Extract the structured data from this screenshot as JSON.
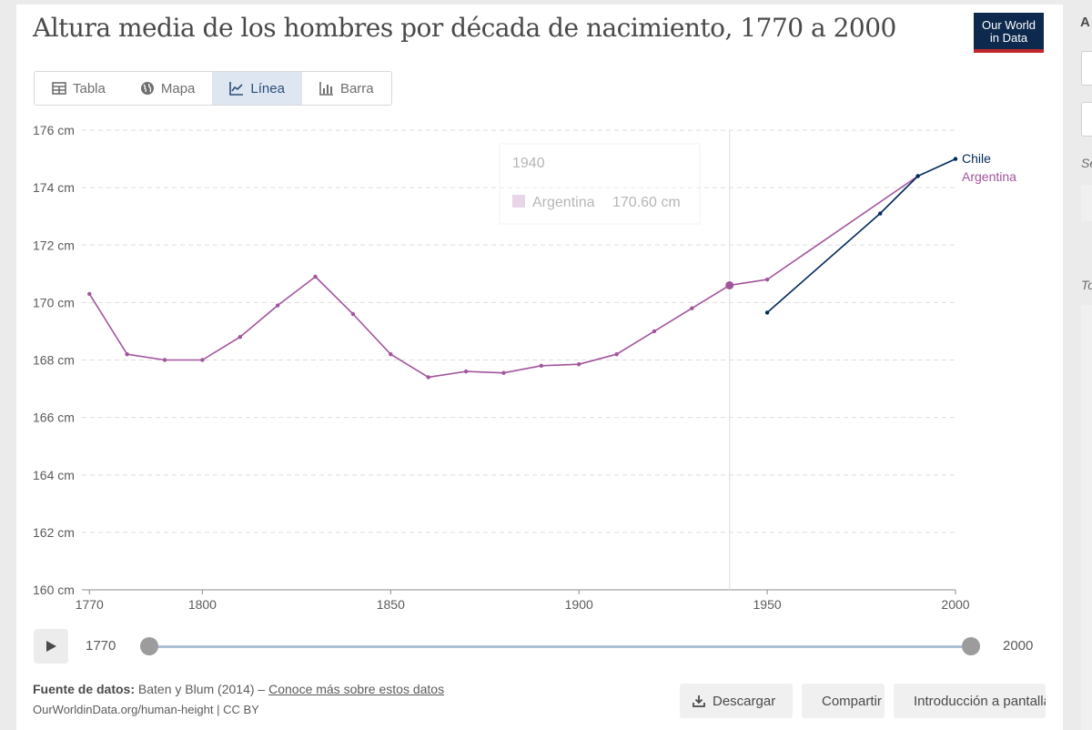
{
  "header": {
    "title": "Altura media de los hombres por década de nacimiento, 1770 a 2000",
    "logo_line1": "Our World",
    "logo_line2": "in Data"
  },
  "tabs": [
    {
      "label": "Tabla",
      "icon": "table-icon",
      "active": false
    },
    {
      "label": "Mapa",
      "icon": "globe-icon",
      "active": false
    },
    {
      "label": "Línea",
      "icon": "line-chart-icon",
      "active": true
    },
    {
      "label": "Barra",
      "icon": "bar-chart-icon",
      "active": false
    }
  ],
  "tooltip": {
    "year": "1940",
    "entity": "Argentina",
    "value": "170.60 cm"
  },
  "chart_data": {
    "type": "line",
    "ylim": [
      160,
      176
    ],
    "xlim": [
      1768,
      2000
    ],
    "y_ticks": [
      160,
      162,
      164,
      166,
      168,
      170,
      172,
      174,
      176
    ],
    "y_tick_labels": [
      "160 cm",
      "162 cm",
      "164 cm",
      "166 cm",
      "168 cm",
      "170 cm",
      "172 cm",
      "174 cm",
      "176 cm"
    ],
    "x_ticks": [
      1770,
      1800,
      1850,
      1900,
      1950,
      2000
    ],
    "x_tick_labels": [
      "1770",
      "1800",
      "1850",
      "1900",
      "1950",
      "2000"
    ],
    "grid": "horizontal dashed",
    "hover_year": 1940,
    "series": [
      {
        "name": "Argentina",
        "color": "#a2559c",
        "x": [
          1770,
          1780,
          1790,
          1800,
          1810,
          1820,
          1830,
          1840,
          1850,
          1860,
          1870,
          1880,
          1890,
          1900,
          1910,
          1920,
          1930,
          1940,
          1950,
          1990
        ],
        "values": [
          170.3,
          168.2,
          168.0,
          168.0,
          168.8,
          169.9,
          170.9,
          169.6,
          168.2,
          167.4,
          167.6,
          167.55,
          167.8,
          167.85,
          168.2,
          169.0,
          169.8,
          170.6,
          170.8,
          174.4
        ]
      },
      {
        "name": "Chile",
        "color": "#00295b",
        "x": [
          1950,
          1980,
          1990,
          2000
        ],
        "values": [
          169.65,
          173.1,
          174.4,
          175.0
        ]
      }
    ]
  },
  "timeline": {
    "start": "1770",
    "end": "2000"
  },
  "footer": {
    "source_label": "Fuente de datos:",
    "source_text": "Baten y Blum (2014) –",
    "source_link": "Conoce más sobre estos datos",
    "url": "OurWorldinData.org/human-height | CC BY"
  },
  "actions": {
    "download": "Descargar",
    "share": "Compartir",
    "fullscreen": "Introducción a pantalla completa"
  },
  "sidebar": {
    "heading": "A",
    "label_se": "Se",
    "label_to": "To"
  }
}
